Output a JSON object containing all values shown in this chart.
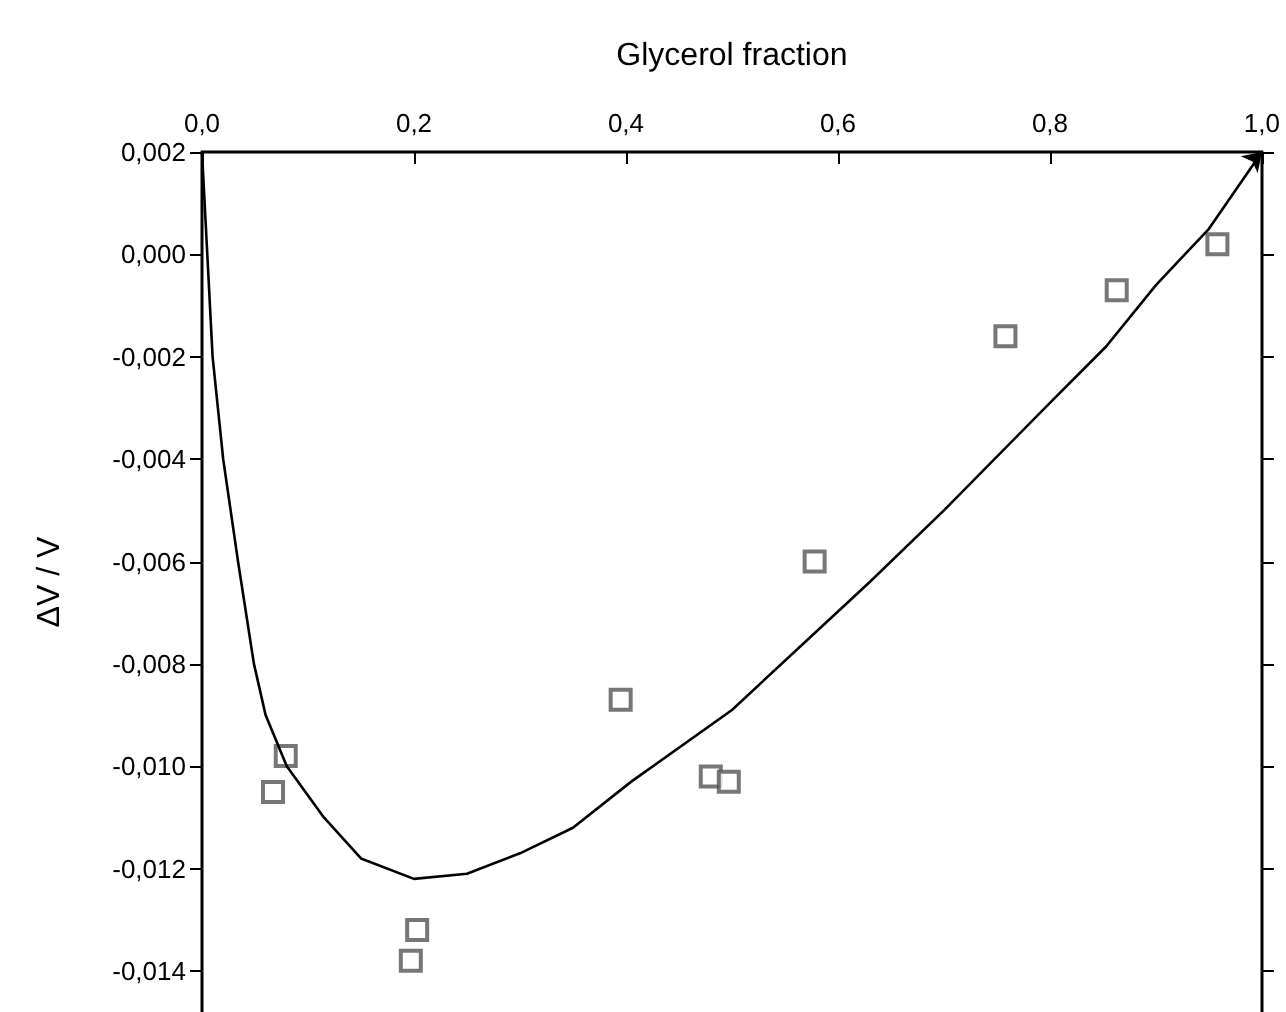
{
  "chart_data": {
    "type": "scatter",
    "xlabel": "Glycerol fraction",
    "ylabel": "ΔV / V",
    "xlim": [
      0,
      1
    ],
    "ylim": [
      -0.0148,
      0.002
    ],
    "xticks": [
      {
        "value": 0,
        "label": "0,0"
      },
      {
        "value": 0.2,
        "label": "0,2"
      },
      {
        "value": 0.4,
        "label": "0,4"
      },
      {
        "value": 0.6,
        "label": "0,6"
      },
      {
        "value": 0.8,
        "label": "0,8"
      },
      {
        "value": 1,
        "label": "1,0"
      }
    ],
    "yticks": [
      {
        "value": 0.002,
        "label": "0,002"
      },
      {
        "value": 0,
        "label": "0,000"
      },
      {
        "value": -0.002,
        "label": "-0,002"
      },
      {
        "value": -0.004,
        "label": "-0,004"
      },
      {
        "value": -0.006,
        "label": "-0,006"
      },
      {
        "value": -0.008,
        "label": "-0,008"
      },
      {
        "value": -0.01,
        "label": "-0,010"
      },
      {
        "value": -0.012,
        "label": "-0,012"
      },
      {
        "value": -0.014,
        "label": "-0,014"
      }
    ],
    "grid": false,
    "series": [
      {
        "color": "#555555",
        "marker": "square",
        "x": [
          0.067,
          0.079,
          0.197,
          0.203,
          0.395,
          0.48,
          0.497,
          0.578,
          0.758,
          0.863,
          0.958
        ],
        "values": [
          -0.0105,
          -0.0098,
          -0.0138,
          -0.0132,
          -0.0087,
          -0.0102,
          -0.0103,
          -0.006,
          -0.0016,
          -0.0007,
          0.0002
        ]
      },
      {
        "type": "line",
        "color": "#000000",
        "marker": "none",
        "line_style": "solid",
        "x": [
          0,
          0.01,
          0.02,
          0.034,
          0.049,
          0.06,
          0.08,
          0.115,
          0.15,
          0.2,
          0.25,
          0.3,
          0.35,
          0.405,
          0.5,
          0.63,
          0.7,
          0.8,
          0.853,
          0.9,
          0.95,
          1
        ],
        "values": [
          0.002,
          -0.002,
          -0.004,
          -0.006,
          -0.008,
          -0.009,
          -0.01,
          -0.011,
          -0.0118,
          -0.0122,
          -0.0121,
          -0.0117,
          -0.0112,
          -0.0103,
          -0.0089,
          -0.0064,
          -0.005,
          -0.0029,
          -0.0018,
          -0.0006,
          0.0005,
          0.002
        ]
      }
    ]
  }
}
